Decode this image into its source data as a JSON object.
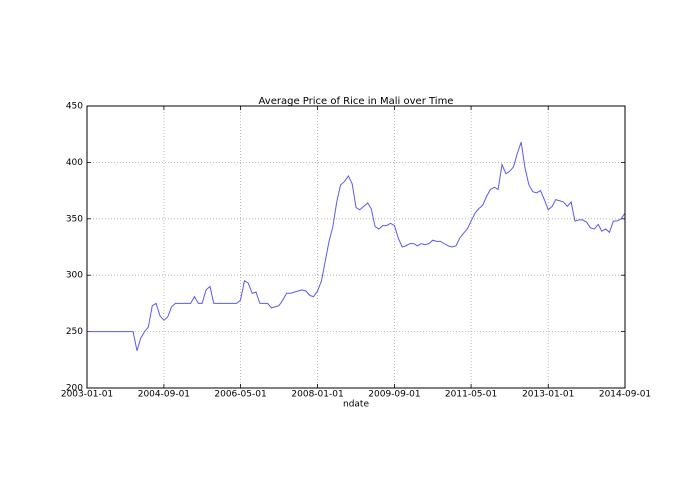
{
  "chart_data": {
    "type": "line",
    "title": "Average Price of Rice in Mali over Time",
    "x_label": "ndate",
    "x": [
      "2003-01-01",
      "2004-01-01",
      "2004-02-01",
      "2004-03-01",
      "2004-04-01",
      "2004-05-01",
      "2004-06-01",
      "2004-07-01",
      "2004-08-01",
      "2004-09-01",
      "2004-10-01",
      "2004-11-01",
      "2004-12-01",
      "2005-04-01",
      "2005-05-01",
      "2005-06-01",
      "2005-07-01",
      "2005-08-01",
      "2005-09-01",
      "2005-10-01",
      "2006-04-01",
      "2006-05-01",
      "2006-06-01",
      "2006-07-01",
      "2006-08-01",
      "2006-09-01",
      "2006-10-01",
      "2006-12-01",
      "2007-01-01",
      "2007-02-01",
      "2007-03-01",
      "2007-04-01",
      "2007-05-01",
      "2007-06-01",
      "2007-07-01",
      "2007-08-01",
      "2007-09-01",
      "2007-10-01",
      "2007-11-01",
      "2007-12-01",
      "2008-01-01",
      "2008-02-01",
      "2008-03-01",
      "2008-04-01",
      "2008-05-01",
      "2008-06-01",
      "2008-07-01",
      "2008-08-01",
      "2008-09-01",
      "2008-10-01",
      "2008-11-01",
      "2008-12-01",
      "2009-01-01",
      "2009-02-01",
      "2009-03-01",
      "2009-04-01",
      "2009-05-01",
      "2009-06-01",
      "2009-07-01",
      "2009-08-01",
      "2009-09-01",
      "2009-10-01",
      "2009-11-01",
      "2009-12-01",
      "2010-01-01",
      "2010-02-01",
      "2010-03-01",
      "2010-04-01",
      "2010-05-01",
      "2010-06-01",
      "2010-07-01",
      "2010-08-01",
      "2010-09-01",
      "2010-10-01",
      "2010-11-01",
      "2010-12-01",
      "2011-01-01",
      "2011-02-01",
      "2011-03-01",
      "2011-04-01",
      "2011-05-01",
      "2011-06-01",
      "2011-07-01",
      "2011-08-01",
      "2011-09-01",
      "2011-10-01",
      "2011-11-01",
      "2011-12-01",
      "2012-01-01",
      "2012-02-01",
      "2012-03-01",
      "2012-04-01",
      "2012-05-01",
      "2012-06-01",
      "2012-07-01",
      "2012-08-01",
      "2012-09-01",
      "2012-10-01",
      "2012-11-01",
      "2012-12-01",
      "2013-01-01",
      "2013-02-01",
      "2013-03-01",
      "2013-04-01",
      "2013-05-01",
      "2013-06-01",
      "2013-07-01",
      "2013-08-01",
      "2013-09-01",
      "2013-10-01",
      "2013-11-01",
      "2013-12-01",
      "2014-01-01",
      "2014-02-01",
      "2014-03-01",
      "2014-04-01",
      "2014-05-01",
      "2014-06-01",
      "2014-07-01",
      "2014-08-01",
      "2014-09-01"
    ],
    "series": [
      {
        "color": "#5b5bf0",
        "values": [
          250,
          250,
          233,
          244,
          250,
          254,
          273,
          275,
          264,
          260,
          263,
          272,
          275,
          275,
          281,
          275,
          275,
          287,
          290,
          275,
          275,
          278,
          295,
          293,
          284,
          285,
          275,
          275,
          271,
          272,
          273,
          278,
          284,
          284,
          285,
          286,
          287,
          286,
          282,
          281,
          286,
          295,
          312,
          330,
          343,
          365,
          380,
          383,
          388,
          381,
          360,
          358,
          361,
          364,
          359,
          343,
          341,
          344,
          344,
          346,
          344,
          333,
          325,
          326,
          328,
          328,
          326,
          328,
          327,
          328,
          331,
          330,
          330,
          328,
          326,
          325,
          326,
          333,
          337,
          341,
          348,
          355,
          359,
          362,
          370,
          376,
          378,
          376,
          398,
          390,
          392,
          396,
          408,
          418,
          395,
          380,
          374,
          373,
          375,
          367,
          358,
          361,
          367,
          366,
          365,
          361,
          365,
          348,
          349,
          349,
          347,
          342,
          341,
          345,
          339,
          341,
          338,
          348,
          348,
          350,
          355
        ]
      }
    ],
    "xlim": [
      "2003-01-01",
      "2014-09-01"
    ],
    "xticks": [
      "2003-01-01",
      "2004-09-01",
      "2006-05-01",
      "2008-01-01",
      "2009-09-01",
      "2011-05-01",
      "2013-01-01",
      "2014-09-01"
    ],
    "ylim": [
      200,
      450
    ],
    "yticks": [
      200,
      250,
      300,
      350,
      400,
      450
    ],
    "grid": true
  }
}
